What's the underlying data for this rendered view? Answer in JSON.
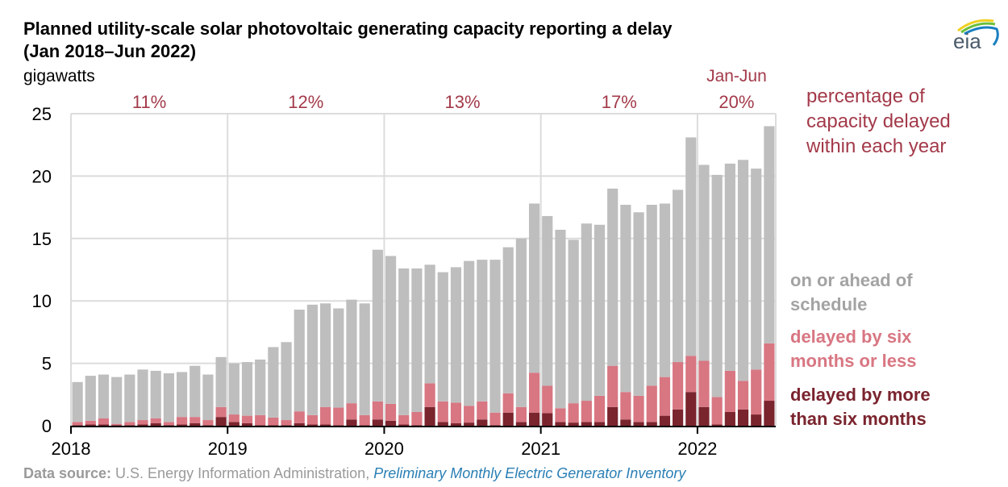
{
  "title_line1": "Planned utility-scale solar photovoltaic generating capacity reporting a delay",
  "title_line2": "(Jan 2018–Jun 2022)",
  "unit_label": "gigawatts",
  "logo_text": "eia",
  "legend": {
    "pct_note": [
      "percentage of",
      "capacity delayed",
      "within each year"
    ],
    "on_schedule": [
      "on or ahead of",
      "schedule"
    ],
    "delayed_short": [
      "delayed by six",
      "months or less"
    ],
    "delayed_long": [
      "delayed by more",
      "than six months"
    ]
  },
  "colors": {
    "on_schedule": "#bebebe",
    "delayed_short": "#d87682",
    "delayed_long": "#7a242e",
    "pct_text": "#a33a4a",
    "legend_gray": "#a3a3a3"
  },
  "source": {
    "label": "Data source:",
    "agency": " U.S. Energy Information Administration, ",
    "publication": "Preliminary Monthly Electric Generator Inventory"
  },
  "chart_data": {
    "type": "bar",
    "stacked": true,
    "title": "Planned utility-scale solar photovoltaic generating capacity reporting a delay (Jan 2018–Jun 2022)",
    "ylabel": "gigawatts",
    "xlabel": "",
    "ylim": [
      0,
      25
    ],
    "yticks": [
      0,
      5,
      10,
      15,
      20,
      25
    ],
    "xtick_labels": [
      "2018",
      "2019",
      "2020",
      "2021",
      "2022"
    ],
    "grid": true,
    "legend_position": "right",
    "year_annotations": [
      {
        "year": "2018",
        "label": "11%"
      },
      {
        "year": "2019",
        "label": "12%"
      },
      {
        "year": "2020",
        "label": "13%"
      },
      {
        "year": "2021",
        "label": "17%"
      },
      {
        "year": "2022",
        "label": "20%",
        "prefix": "Jan-Jun"
      }
    ],
    "months": [
      "2018-01",
      "2018-02",
      "2018-03",
      "2018-04",
      "2018-05",
      "2018-06",
      "2018-07",
      "2018-08",
      "2018-09",
      "2018-10",
      "2018-11",
      "2018-12",
      "2019-01",
      "2019-02",
      "2019-03",
      "2019-04",
      "2019-05",
      "2019-06",
      "2019-07",
      "2019-08",
      "2019-09",
      "2019-10",
      "2019-11",
      "2019-12",
      "2020-01",
      "2020-02",
      "2020-03",
      "2020-04",
      "2020-05",
      "2020-06",
      "2020-07",
      "2020-08",
      "2020-09",
      "2020-10",
      "2020-11",
      "2020-12",
      "2021-01",
      "2021-02",
      "2021-03",
      "2021-04",
      "2021-05",
      "2021-06",
      "2021-07",
      "2021-08",
      "2021-09",
      "2021-10",
      "2021-11",
      "2021-12",
      "2022-01",
      "2022-02",
      "2022-03",
      "2022-04",
      "2022-05",
      "2022-06"
    ],
    "series": [
      {
        "name": "delayed by more than six months",
        "values": [
          0.05,
          0.1,
          0.1,
          0.05,
          0.05,
          0.1,
          0.2,
          0.05,
          0.1,
          0.2,
          0.05,
          0.7,
          0.3,
          0.2,
          0.05,
          0.05,
          0.05,
          0.2,
          0.1,
          0.1,
          0.05,
          0.5,
          0.05,
          0.5,
          0.4,
          0.1,
          0.05,
          1.5,
          0.3,
          0.2,
          0.25,
          0.5,
          0.05,
          1.05,
          0.3,
          1.05,
          1.0,
          0.3,
          0.25,
          0.3,
          0.3,
          1.5,
          0.5,
          0.3,
          0.3,
          0.8,
          1.3,
          2.7,
          1.5,
          0.1,
          1.1,
          1.3,
          0.9,
          2.0
        ]
      },
      {
        "name": "delayed by six months or less",
        "values": [
          0.25,
          0.3,
          0.5,
          0.1,
          0.25,
          0.35,
          0.4,
          0.25,
          0.6,
          0.5,
          0.4,
          0.8,
          0.6,
          0.6,
          0.8,
          0.6,
          0.4,
          0.95,
          0.75,
          1.4,
          1.4,
          1.3,
          0.8,
          1.45,
          1.35,
          0.75,
          1.05,
          1.9,
          1.65,
          1.65,
          1.35,
          1.45,
          1.0,
          1.55,
          1.2,
          3.2,
          2.2,
          1.1,
          1.55,
          1.7,
          2.1,
          3.3,
          2.2,
          2.1,
          2.9,
          3.1,
          3.8,
          2.9,
          3.7,
          2.2,
          3.3,
          2.3,
          3.6,
          4.6
        ]
      },
      {
        "name": "on or ahead of schedule",
        "values": [
          3.2,
          3.6,
          3.5,
          3.75,
          3.8,
          4.05,
          3.8,
          3.9,
          3.6,
          4.1,
          3.65,
          4.0,
          4.1,
          4.3,
          4.45,
          5.65,
          6.25,
          8.15,
          8.85,
          8.3,
          7.95,
          8.3,
          8.95,
          12.15,
          11.85,
          11.75,
          11.5,
          9.5,
          10.35,
          10.85,
          11.6,
          11.35,
          12.25,
          11.7,
          13.5,
          13.55,
          13.6,
          14.3,
          13.1,
          14.2,
          13.7,
          14.2,
          15.0,
          14.7,
          14.5,
          13.9,
          13.8,
          17.5,
          15.7,
          17.8,
          16.6,
          17.7,
          16.1,
          17.4
        ]
      }
    ]
  }
}
